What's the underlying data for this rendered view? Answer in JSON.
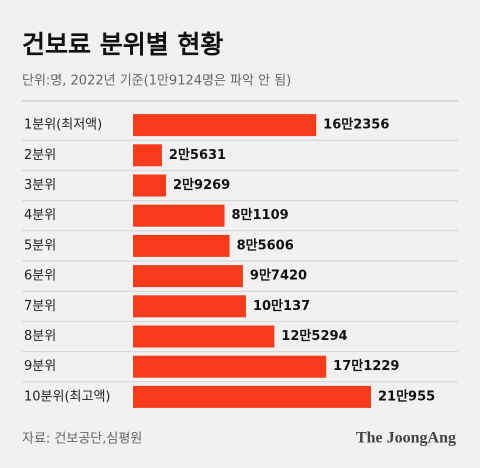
{
  "chart_data": {
    "type": "hbar",
    "title": "건보료 분위별 현황",
    "subtitle": "단위:명, 2022년 기준(1만9124명은 파악 안 됨)",
    "categories": [
      "1분위(최저액)",
      "2분위",
      "3분위",
      "4분위",
      "5분위",
      "6분위",
      "7분위",
      "8분위",
      "9분위",
      "10분위(최고액)"
    ],
    "values": [
      162356,
      25631,
      29269,
      81109,
      85606,
      97420,
      100137,
      125294,
      171229,
      210955
    ],
    "value_labels": [
      "16만2356",
      "2만5631",
      "2만9269",
      "8만1109",
      "8만5606",
      "9만7420",
      "10만137",
      "12만5294",
      "17만1229",
      "21만955"
    ],
    "color": "#f73b1b",
    "source": "자료: 건보공단,심평원",
    "brand": "The JoongAng"
  }
}
